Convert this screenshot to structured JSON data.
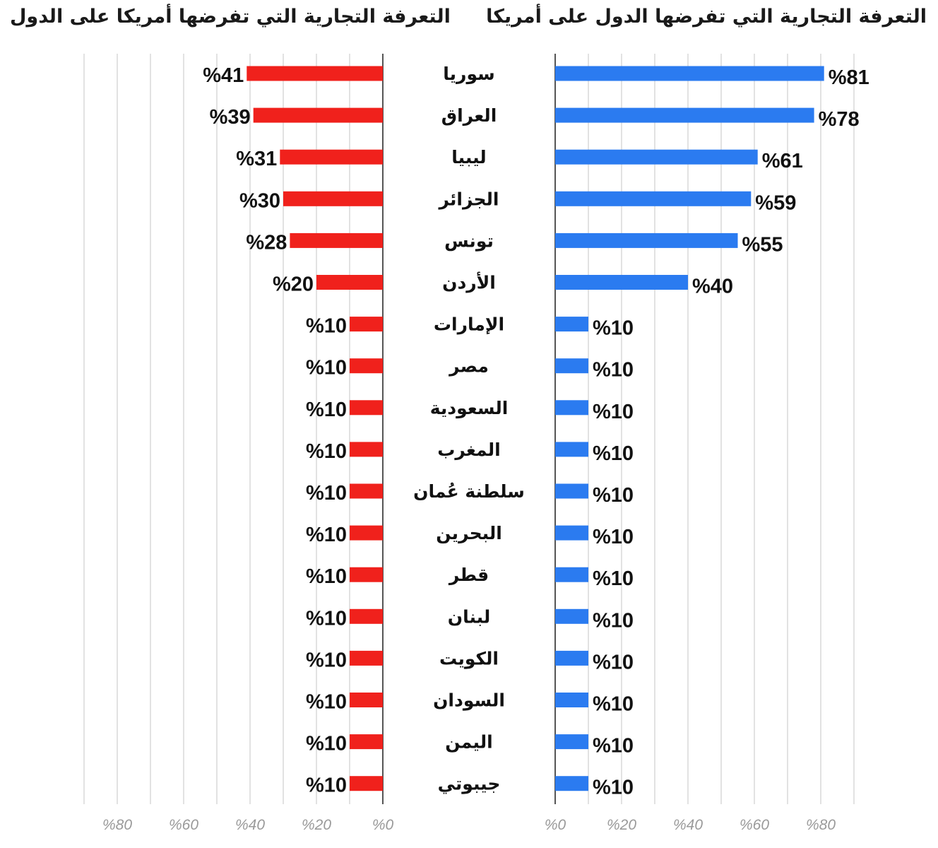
{
  "chart_data": [
    {
      "type": "bar",
      "title": "التعرفة التجارية التي تفرضها الدول على أمريكا",
      "orientation": "horizontal",
      "color": "#2b7bf0",
      "xlim": [
        0,
        90
      ],
      "ticks": [
        "%0",
        "%20",
        "%40",
        "%60",
        "%80"
      ],
      "grid": true,
      "categories": [
        "سوريا",
        "العراق",
        "ليبيا",
        "الجزائر",
        "تونس",
        "الأردن",
        "الإمارات",
        "مصر",
        "السعودية",
        "المغرب",
        "سلطنة عُمان",
        "البحرين",
        "قطر",
        "لبنان",
        "الكويت",
        "السودان",
        "اليمن",
        "جيبوتي"
      ],
      "values": [
        81,
        78,
        61,
        59,
        55,
        40,
        10,
        10,
        10,
        10,
        10,
        10,
        10,
        10,
        10,
        10,
        10,
        10
      ],
      "labels": [
        "%81",
        "%78",
        "%61",
        "%59",
        "%55",
        "%40",
        "%10",
        "%10",
        "%10",
        "%10",
        "%10",
        "%10",
        "%10",
        "%10",
        "%10",
        "%10",
        "%10",
        "%10"
      ]
    },
    {
      "type": "bar",
      "title": "التعرفة التجارية التي تفرضها أمريكا على الدول",
      "orientation": "horizontal",
      "direction": "right-to-left",
      "color": "#f0211c",
      "xlim": [
        0,
        90
      ],
      "ticks": [
        "%0",
        "%20",
        "%40",
        "%60",
        "%80"
      ],
      "grid": true,
      "categories": [
        "سوريا",
        "العراق",
        "ليبيا",
        "الجزائر",
        "تونس",
        "الأردن",
        "الإمارات",
        "مصر",
        "السعودية",
        "المغرب",
        "سلطنة عُمان",
        "البحرين",
        "قطر",
        "لبنان",
        "الكويت",
        "السودان",
        "اليمن",
        "جيبوتي"
      ],
      "values": [
        41,
        39,
        31,
        30,
        28,
        20,
        10,
        10,
        10,
        10,
        10,
        10,
        10,
        10,
        10,
        10,
        10,
        10
      ],
      "labels": [
        "%41",
        "%39",
        "%31",
        "%30",
        "%28",
        "%20",
        "%10",
        "%10",
        "%10",
        "%10",
        "%10",
        "%10",
        "%10",
        "%10",
        "%10",
        "%10",
        "%10",
        "%10"
      ]
    }
  ]
}
